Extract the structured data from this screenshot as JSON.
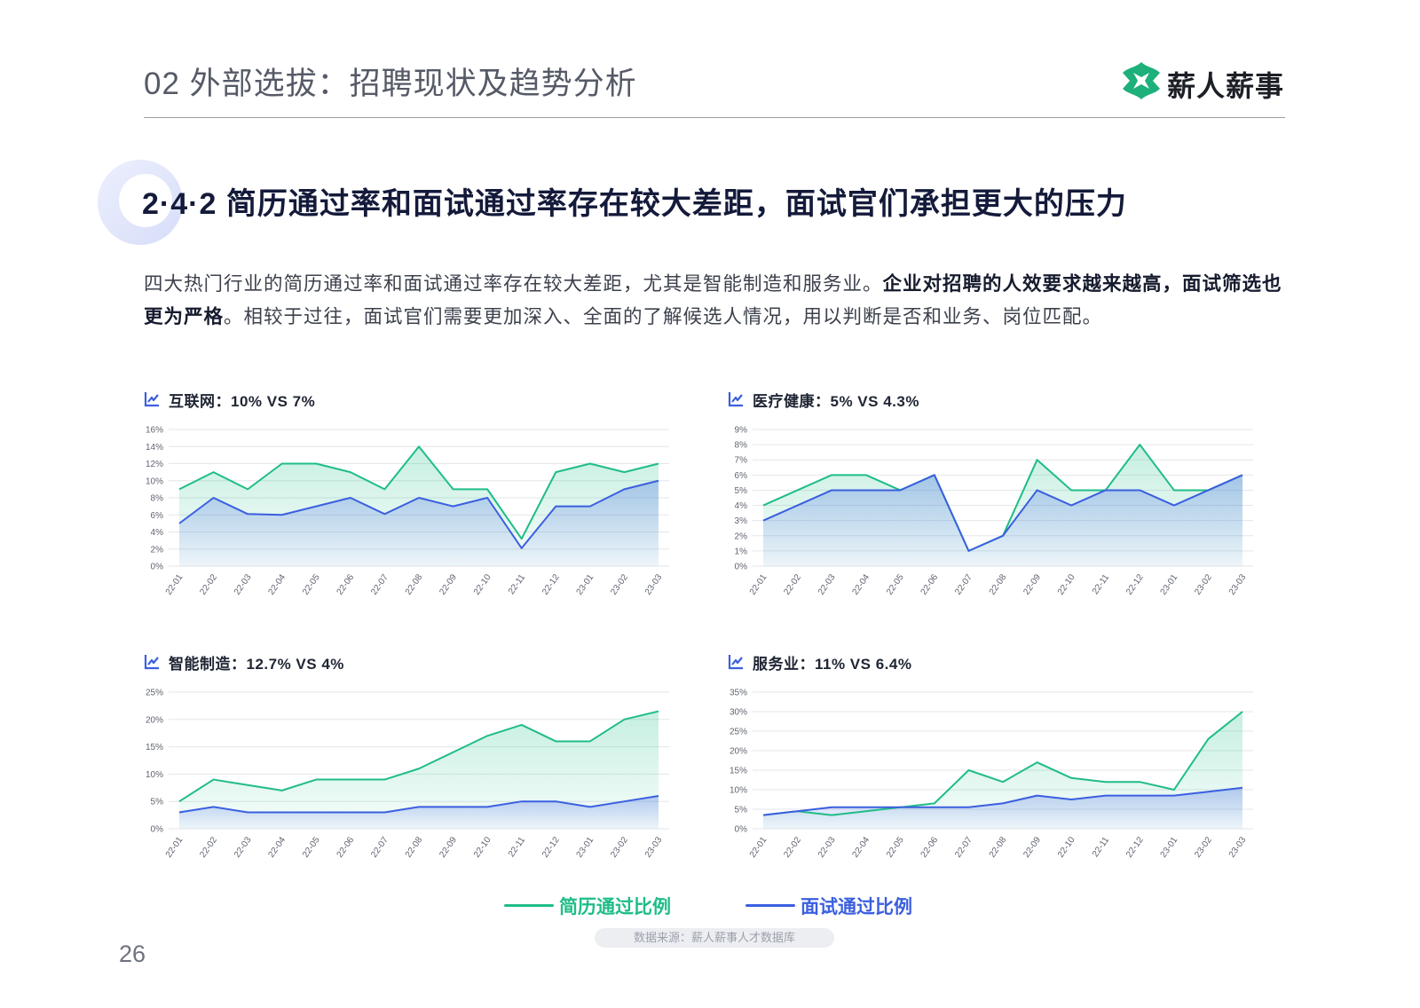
{
  "header": {
    "title": "02 外部选拔：招聘现状及趋势分析"
  },
  "brand": {
    "name": "薪人薪事",
    "color": "#1db07a"
  },
  "section": {
    "title": "2·4·2 简历通过率和面试通过率存在较大差距，面试官们承担更大的压力"
  },
  "intro": {
    "part1": "四大热门行业的简历通过率和面试通过率存在较大差距，尤其是智能制造和服务业。",
    "bold": "企业对招聘的人效要求越来越高，面试筛选也更为严格",
    "part2": "。相较于过往，面试官们需要更加深入、全面的了解候选人情况，用以判断是否和业务、岗位匹配。"
  },
  "legend": {
    "resume": {
      "label": "简历通过比例",
      "color": "#1fbd86"
    },
    "interview": {
      "label": "面试通过比例",
      "color": "#3b5fe0"
    }
  },
  "footer": {
    "source": "数据来源：薪人薪事人才数据库",
    "page_number": "26"
  },
  "chart_data": [
    {
      "type": "area",
      "title": "互联网：10% VS 7%",
      "categories": [
        "22-01",
        "22-02",
        "22-03",
        "22-04",
        "22-05",
        "22-06",
        "22-07",
        "22-08",
        "22-09",
        "22-10",
        "22-11",
        "22-12",
        "23-01",
        "23-02",
        "23-03"
      ],
      "ylim": [
        0,
        16
      ],
      "yticks": [
        0,
        2,
        4,
        6,
        8,
        10,
        12,
        14,
        16
      ],
      "ytick_unit": "%",
      "grid": true,
      "series": [
        {
          "name": "简历通过比例",
          "values": [
            9,
            11,
            9,
            12,
            12,
            11,
            9,
            14,
            9,
            9,
            3.2,
            11,
            12,
            11,
            12
          ]
        },
        {
          "name": "面试通过比例",
          "values": [
            5,
            8,
            6.1,
            6,
            7,
            8,
            6.1,
            8,
            7,
            8,
            2.1,
            7,
            7,
            9,
            10
          ]
        }
      ]
    },
    {
      "type": "area",
      "title": "医疗健康：5% VS 4.3%",
      "categories": [
        "22-01",
        "22-02",
        "22-03",
        "22-04",
        "22-05",
        "22-06",
        "22-07",
        "22-08",
        "22-09",
        "22-10",
        "22-11",
        "22-12",
        "23-01",
        "23-02",
        "23-03"
      ],
      "ylim": [
        0,
        9
      ],
      "yticks": [
        0,
        1,
        2,
        3,
        4,
        5,
        6,
        7,
        8,
        9
      ],
      "ytick_unit": "%",
      "grid": true,
      "series": [
        {
          "name": "简历通过比例",
          "values": [
            4,
            5,
            6,
            6,
            5,
            6,
            1,
            2,
            7,
            5,
            5,
            8,
            5,
            5,
            6
          ]
        },
        {
          "name": "面试通过比例",
          "values": [
            3,
            4,
            5,
            5,
            5,
            6,
            1,
            2,
            5,
            4,
            5,
            5,
            4,
            5,
            6
          ]
        }
      ]
    },
    {
      "type": "area",
      "title": "智能制造：12.7% VS 4%",
      "categories": [
        "22-01",
        "22-02",
        "22-03",
        "22-04",
        "22-05",
        "22-06",
        "22-07",
        "22-08",
        "22-09",
        "22-10",
        "22-11",
        "22-12",
        "23-01",
        "23-02",
        "23-03"
      ],
      "ylim": [
        0,
        25
      ],
      "yticks": [
        0,
        5,
        10,
        15,
        20,
        25
      ],
      "ytick_unit": "%",
      "grid": true,
      "series": [
        {
          "name": "简历通过比例",
          "values": [
            5,
            9,
            8,
            7,
            9,
            9,
            9,
            11,
            14,
            17,
            19,
            16,
            16,
            20,
            21.5
          ]
        },
        {
          "name": "面试通过比例",
          "values": [
            3,
            4,
            3,
            3,
            3,
            3,
            3,
            4,
            4,
            4,
            5,
            5,
            4,
            5,
            6
          ]
        }
      ]
    },
    {
      "type": "area",
      "title": "服务业：11% VS 6.4%",
      "categories": [
        "22-01",
        "22-02",
        "22-03",
        "22-04",
        "22-05",
        "22-06",
        "22-07",
        "22-08",
        "22-09",
        "22-10",
        "22-11",
        "22-12",
        "23-01",
        "23-02",
        "23-03"
      ],
      "ylim": [
        0,
        35
      ],
      "yticks": [
        0,
        5,
        10,
        15,
        20,
        25,
        30,
        35
      ],
      "ytick_unit": "%",
      "grid": true,
      "series": [
        {
          "name": "简历通过比例",
          "values": [
            3.5,
            4.5,
            3.5,
            4.5,
            5.5,
            6.5,
            15,
            12,
            17,
            13,
            12,
            12,
            10,
            23,
            30
          ]
        },
        {
          "name": "面试通过比例",
          "values": [
            3.5,
            4.5,
            5.5,
            5.5,
            5.5,
            5.5,
            5.5,
            6.5,
            8.5,
            7.5,
            8.5,
            8.5,
            8.5,
            9.5,
            10.5
          ]
        }
      ]
    }
  ]
}
